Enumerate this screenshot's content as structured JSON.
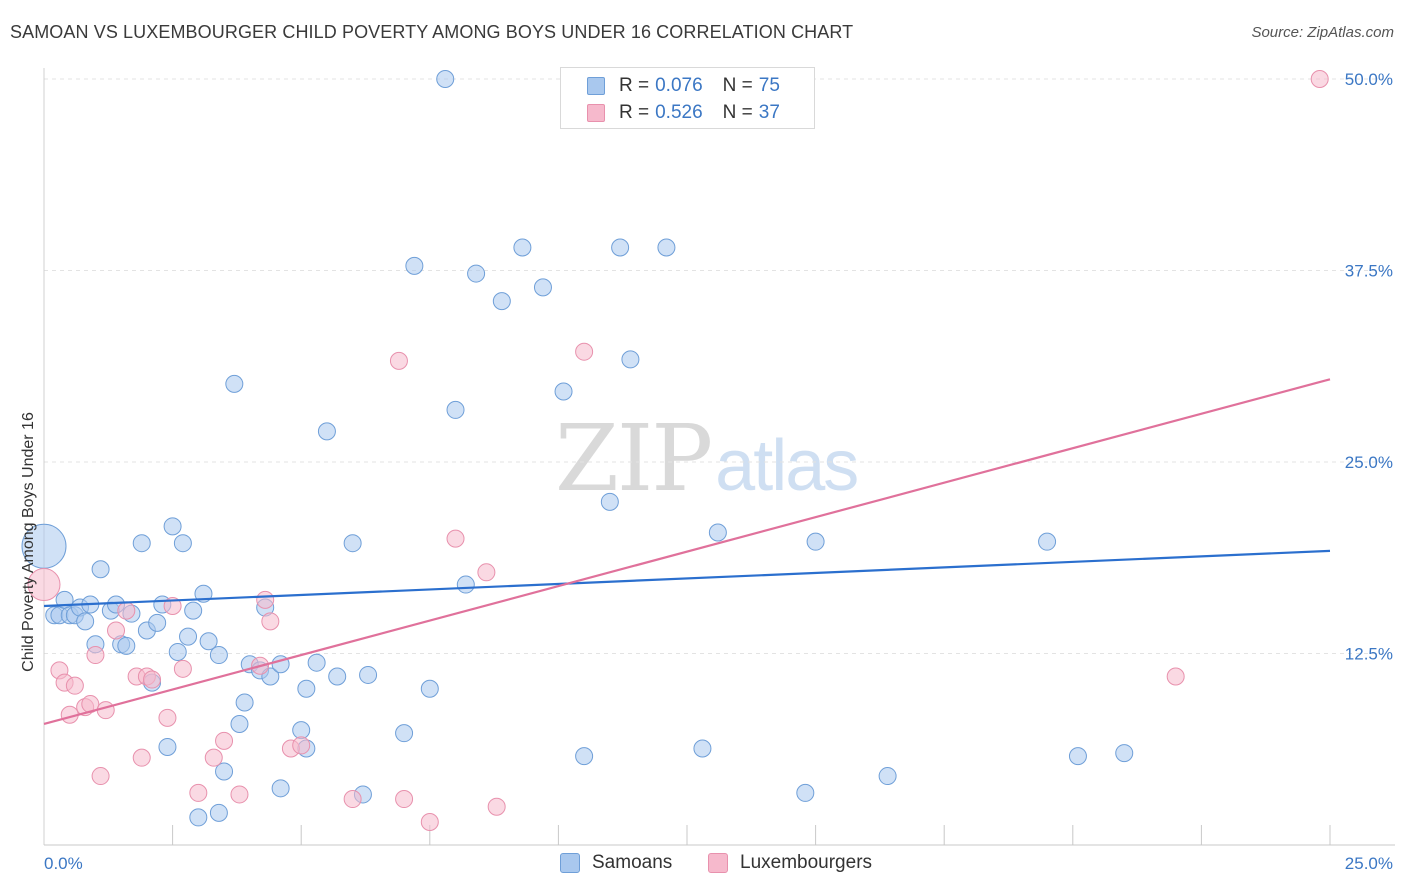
{
  "title": "SAMOAN VS LUXEMBOURGER CHILD POVERTY AMONG BOYS UNDER 16 CORRELATION CHART",
  "source": "Source: ZipAtlas.com",
  "watermark": {
    "zip": "ZIP",
    "atlas": "atlas"
  },
  "legend": {
    "rows": [
      {
        "r_label": "R =",
        "r_value": "0.076",
        "n_label": "N =",
        "n_value": "75"
      },
      {
        "r_label": "R =",
        "r_value": "0.526",
        "n_label": "N =",
        "n_value": "37"
      }
    ]
  },
  "bottom_legend": [
    "Samoans",
    "Luxembourgers"
  ],
  "colors": {
    "samoan_fill": "#a9c8ee",
    "samoan_stroke": "#6f9fd8",
    "samoan_line": "#2b6fce",
    "lux_fill": "#f6b9cc",
    "lux_stroke": "#e891ad",
    "lux_line": "#e0719b",
    "grid": "#e3e3e3",
    "axis_label": "#3b77c4"
  },
  "chart_data": {
    "type": "scatter",
    "title": "SAMOAN VS LUXEMBOURGER CHILD POVERTY AMONG BOYS UNDER 16 CORRELATION CHART",
    "xlabel": "",
    "ylabel": "Child Poverty Among Boys Under 16",
    "xlim": [
      0,
      25
    ],
    "ylim": [
      0,
      50
    ],
    "x_tick_labels": [
      "0.0%",
      "25.0%"
    ],
    "y_ticks": [
      12.5,
      25.0,
      37.5,
      50.0
    ],
    "y_tick_labels": [
      "12.5%",
      "25.0%",
      "37.5%",
      "50.0%"
    ],
    "grid": true,
    "legend_position": "top-center",
    "series": [
      {
        "name": "Samoans",
        "r": 0.076,
        "n": 75,
        "trend": {
          "x": [
            0,
            25
          ],
          "y": [
            15.6,
            19.2
          ]
        },
        "points": [
          [
            0.0,
            19.5,
            3
          ],
          [
            0.2,
            15.0,
            1
          ],
          [
            0.3,
            15.0,
            1
          ],
          [
            0.4,
            16.0,
            1
          ],
          [
            0.5,
            15.0,
            1
          ],
          [
            0.6,
            15.0,
            1
          ],
          [
            0.7,
            15.5,
            1
          ],
          [
            0.8,
            14.6,
            1
          ],
          [
            0.9,
            15.7,
            1
          ],
          [
            1.0,
            13.1,
            1
          ],
          [
            1.1,
            18.0,
            1
          ],
          [
            1.3,
            15.3,
            1
          ],
          [
            1.4,
            15.7,
            1
          ],
          [
            1.5,
            13.1,
            1
          ],
          [
            1.6,
            13.0,
            1
          ],
          [
            1.7,
            15.1,
            1
          ],
          [
            1.9,
            19.7,
            1
          ],
          [
            2.0,
            14.0,
            1
          ],
          [
            2.1,
            10.6,
            1
          ],
          [
            2.2,
            14.5,
            1
          ],
          [
            2.3,
            15.7,
            1
          ],
          [
            2.4,
            6.4,
            1
          ],
          [
            2.5,
            20.8,
            1
          ],
          [
            2.6,
            12.6,
            1
          ],
          [
            2.7,
            19.7,
            1
          ],
          [
            2.8,
            13.6,
            1
          ],
          [
            2.9,
            15.3,
            1
          ],
          [
            3.0,
            1.8,
            1
          ],
          [
            3.1,
            16.4,
            1
          ],
          [
            3.2,
            13.3,
            1
          ],
          [
            3.4,
            12.4,
            1
          ],
          [
            3.4,
            2.1,
            1
          ],
          [
            3.5,
            4.8,
            1
          ],
          [
            3.7,
            30.1,
            1
          ],
          [
            3.8,
            7.9,
            1
          ],
          [
            3.9,
            9.3,
            1
          ],
          [
            4.0,
            11.8,
            1
          ],
          [
            4.2,
            11.4,
            1
          ],
          [
            4.3,
            15.5,
            1
          ],
          [
            4.4,
            11.0,
            1
          ],
          [
            4.6,
            3.7,
            1
          ],
          [
            4.6,
            11.8,
            1
          ],
          [
            5.0,
            7.5,
            1
          ],
          [
            5.1,
            10.2,
            1
          ],
          [
            5.1,
            6.3,
            1
          ],
          [
            5.3,
            11.9,
            1
          ],
          [
            5.5,
            27.0,
            1
          ],
          [
            5.7,
            11.0,
            1
          ],
          [
            6.0,
            19.7,
            1
          ],
          [
            6.2,
            3.3,
            1
          ],
          [
            6.3,
            11.1,
            1
          ],
          [
            7.0,
            7.3,
            1
          ],
          [
            7.2,
            37.8,
            1
          ],
          [
            7.5,
            10.2,
            1
          ],
          [
            7.8,
            50.0,
            1
          ],
          [
            8.0,
            28.4,
            1
          ],
          [
            8.2,
            17.0,
            1
          ],
          [
            8.4,
            37.3,
            1
          ],
          [
            8.9,
            35.5,
            1
          ],
          [
            9.3,
            39.0,
            1
          ],
          [
            9.7,
            36.4,
            1
          ],
          [
            10.1,
            29.6,
            1
          ],
          [
            10.5,
            5.8,
            1
          ],
          [
            11.0,
            22.4,
            1
          ],
          [
            11.2,
            39.0,
            1
          ],
          [
            11.4,
            31.7,
            1
          ],
          [
            12.1,
            39.0,
            1
          ],
          [
            12.8,
            6.3,
            1
          ],
          [
            13.1,
            20.4,
            1
          ],
          [
            14.8,
            3.4,
            1
          ],
          [
            15.0,
            19.8,
            1
          ],
          [
            16.4,
            4.5,
            1
          ],
          [
            19.5,
            19.8,
            1
          ],
          [
            20.1,
            5.8,
            1
          ],
          [
            21.0,
            6.0,
            1
          ]
        ]
      },
      {
        "name": "Luxembourgers",
        "r": 0.526,
        "n": 37,
        "trend": {
          "x": [
            0,
            25
          ],
          "y": [
            7.9,
            30.4
          ]
        },
        "points": [
          [
            0.0,
            17.0,
            2
          ],
          [
            0.3,
            11.4,
            1
          ],
          [
            0.4,
            10.6,
            1
          ],
          [
            0.5,
            8.5,
            1
          ],
          [
            0.6,
            10.4,
            1
          ],
          [
            0.8,
            9.0,
            1
          ],
          [
            0.9,
            9.2,
            1
          ],
          [
            1.0,
            12.4,
            1
          ],
          [
            1.1,
            4.5,
            1
          ],
          [
            1.2,
            8.8,
            1
          ],
          [
            1.4,
            14.0,
            1
          ],
          [
            1.6,
            15.3,
            1
          ],
          [
            1.8,
            11.0,
            1
          ],
          [
            1.9,
            5.7,
            1
          ],
          [
            2.0,
            11.0,
            1
          ],
          [
            2.1,
            10.8,
            1
          ],
          [
            2.4,
            8.3,
            1
          ],
          [
            2.5,
            15.6,
            1
          ],
          [
            2.7,
            11.5,
            1
          ],
          [
            3.0,
            3.4,
            1
          ],
          [
            3.3,
            5.7,
            1
          ],
          [
            3.5,
            6.8,
            1
          ],
          [
            3.8,
            3.3,
            1
          ],
          [
            4.2,
            11.7,
            1
          ],
          [
            4.3,
            16.0,
            1
          ],
          [
            4.4,
            14.6,
            1
          ],
          [
            4.8,
            6.3,
            1
          ],
          [
            5.0,
            6.5,
            1
          ],
          [
            6.0,
            3.0,
            1
          ],
          [
            6.9,
            31.6,
            1
          ],
          [
            7.0,
            3.0,
            1
          ],
          [
            7.5,
            1.5,
            1
          ],
          [
            8.0,
            20.0,
            1
          ],
          [
            8.6,
            17.8,
            1
          ],
          [
            8.8,
            2.5,
            1
          ],
          [
            10.5,
            32.2,
            1
          ],
          [
            22.0,
            11.0,
            1
          ],
          [
            24.8,
            50.0,
            1
          ]
        ]
      }
    ]
  }
}
